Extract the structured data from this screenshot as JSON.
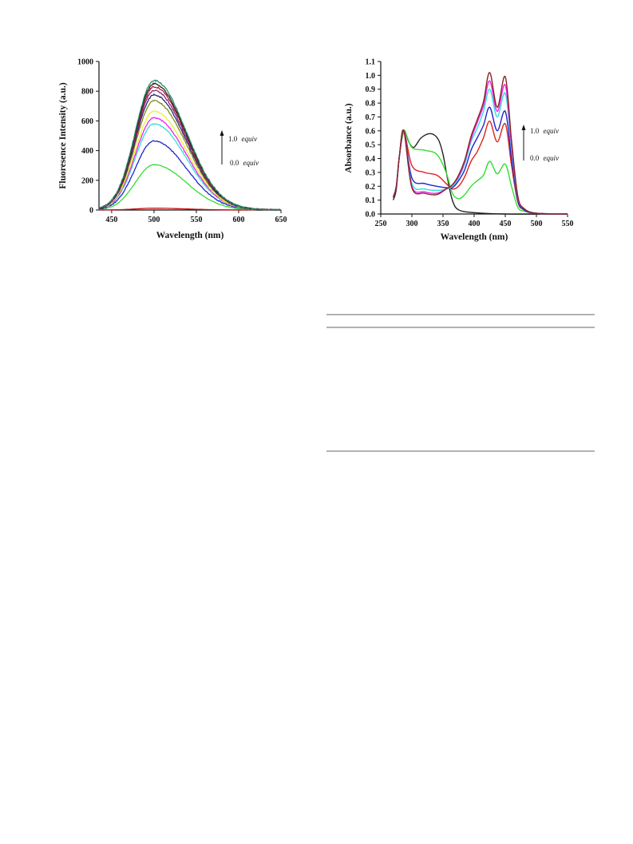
{
  "chart_data": [
    {
      "type": "line",
      "xlabel": "Wavelength (nm)",
      "ylabel": "Fluoresence Intensity (a.u.)",
      "xlim": [
        435,
        650
      ],
      "ylim": [
        0,
        1000
      ],
      "xticks": [
        450,
        500,
        550,
        600,
        650
      ],
      "yticks": [
        0,
        200,
        400,
        600,
        800,
        1000
      ],
      "annotations": {
        "top_value": "1.0",
        "top_unit": "equiv",
        "bottom_value": "0.0",
        "bottom_unit": "equiv"
      },
      "curve_model": {
        "peak_x": 500,
        "sigma_left": 22,
        "sigma_right": 38
      },
      "series": [
        {
          "color": "#cc1111",
          "peak": 12
        },
        {
          "color": "#33dd33",
          "peak": 305
        },
        {
          "color": "#2222cc",
          "peak": 465
        },
        {
          "color": "#33dddd",
          "peak": 580
        },
        {
          "color": "#ee22ee",
          "peak": 620
        },
        {
          "color": "#eeee33",
          "peak": 665
        },
        {
          "color": "#888822",
          "peak": 735
        },
        {
          "color": "#2a2a66",
          "peak": 775
        },
        {
          "color": "#882288",
          "peak": 805
        },
        {
          "color": "#aa2222",
          "peak": 830
        },
        {
          "color": "#222222",
          "peak": 850
        },
        {
          "color": "#2a8a6a",
          "peak": 872
        }
      ]
    },
    {
      "type": "line",
      "xlabel": "Wavelength (nm)",
      "ylabel": "Absorbance (a.u.)",
      "xlim": [
        250,
        550
      ],
      "ylim": [
        0,
        1.1
      ],
      "xticks": [
        250,
        300,
        350,
        400,
        450,
        500,
        550
      ],
      "yticks": [
        0.0,
        0.1,
        0.2,
        0.3,
        0.4,
        0.5,
        0.6,
        0.7,
        0.8,
        0.9,
        1.0,
        1.1
      ],
      "annotations": {
        "top_value": "1.0",
        "top_unit": "equiv",
        "bottom_value": "0.0",
        "bottom_unit": "equiv"
      },
      "series": [
        {
          "color": "#222222",
          "x": [
            270,
            275,
            280,
            287,
            295,
            303,
            315,
            330,
            342,
            350,
            357,
            365,
            375,
            400,
            450,
            550
          ],
          "y": [
            0.1,
            0.18,
            0.42,
            0.6,
            0.52,
            0.48,
            0.55,
            0.58,
            0.54,
            0.43,
            0.26,
            0.1,
            0.03,
            0.01,
            0.0,
            0.0
          ]
        },
        {
          "color": "#33dd33",
          "x": [
            270,
            275,
            280,
            287,
            300,
            320,
            340,
            355,
            365,
            375,
            385,
            395,
            405,
            415,
            425,
            437,
            450,
            460,
            470,
            480,
            500,
            550
          ],
          "y": [
            0.12,
            0.2,
            0.42,
            0.6,
            0.48,
            0.46,
            0.43,
            0.3,
            0.15,
            0.11,
            0.14,
            0.2,
            0.24,
            0.28,
            0.38,
            0.29,
            0.36,
            0.2,
            0.05,
            0.02,
            0.005,
            0.0
          ]
        },
        {
          "color": "#dd2222",
          "x": [
            270,
            275,
            280,
            287,
            300,
            320,
            340,
            355,
            365,
            375,
            385,
            395,
            405,
            415,
            425,
            437,
            450,
            460,
            470,
            480,
            500,
            550
          ],
          "y": [
            0.12,
            0.2,
            0.42,
            0.6,
            0.35,
            0.3,
            0.28,
            0.22,
            0.18,
            0.2,
            0.27,
            0.38,
            0.45,
            0.55,
            0.67,
            0.52,
            0.65,
            0.35,
            0.09,
            0.03,
            0.005,
            0.0
          ]
        },
        {
          "color": "#2222cc",
          "x": [
            270,
            275,
            280,
            287,
            300,
            320,
            340,
            355,
            365,
            375,
            385,
            395,
            405,
            415,
            425,
            437,
            450,
            460,
            470,
            480,
            500,
            550
          ],
          "y": [
            0.12,
            0.2,
            0.42,
            0.6,
            0.26,
            0.22,
            0.2,
            0.19,
            0.19,
            0.24,
            0.32,
            0.46,
            0.55,
            0.64,
            0.77,
            0.6,
            0.74,
            0.4,
            0.1,
            0.03,
            0.005,
            0.0
          ]
        },
        {
          "color": "#33dddd",
          "x": [
            270,
            275,
            280,
            287,
            300,
            320,
            340,
            355,
            365,
            375,
            385,
            395,
            405,
            415,
            425,
            437,
            450,
            460,
            470,
            480,
            500,
            550
          ],
          "y": [
            0.12,
            0.2,
            0.42,
            0.6,
            0.22,
            0.18,
            0.17,
            0.18,
            0.2,
            0.26,
            0.36,
            0.52,
            0.62,
            0.74,
            0.9,
            0.7,
            0.87,
            0.47,
            0.12,
            0.04,
            0.005,
            0.0
          ]
        },
        {
          "color": "#ee22ee",
          "x": [
            270,
            275,
            280,
            287,
            300,
            320,
            340,
            355,
            365,
            375,
            385,
            395,
            405,
            415,
            425,
            437,
            450,
            460,
            470,
            480,
            500,
            550
          ],
          "y": [
            0.12,
            0.2,
            0.42,
            0.6,
            0.2,
            0.16,
            0.15,
            0.18,
            0.21,
            0.27,
            0.38,
            0.54,
            0.66,
            0.78,
            0.96,
            0.74,
            0.93,
            0.5,
            0.13,
            0.04,
            0.005,
            0.0
          ]
        },
        {
          "color": "#882222",
          "x": [
            270,
            275,
            280,
            287,
            300,
            320,
            340,
            355,
            365,
            375,
            385,
            395,
            405,
            415,
            425,
            437,
            450,
            460,
            470,
            480,
            500,
            550
          ],
          "y": [
            0.12,
            0.2,
            0.42,
            0.6,
            0.19,
            0.15,
            0.14,
            0.18,
            0.21,
            0.28,
            0.39,
            0.56,
            0.68,
            0.81,
            1.02,
            0.77,
            0.99,
            0.53,
            0.13,
            0.04,
            0.005,
            0.0
          ]
        }
      ]
    }
  ]
}
